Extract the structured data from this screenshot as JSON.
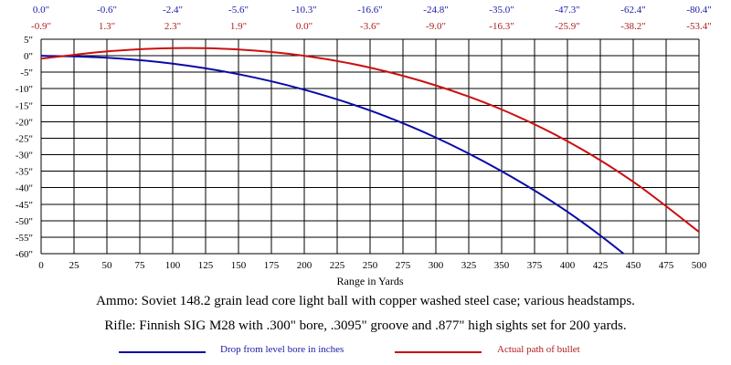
{
  "chart_data": {
    "type": "line",
    "xlabel": "Range in Yards",
    "ylabel": "",
    "xlim": [
      0,
      500
    ],
    "ylim": [
      -60,
      5
    ],
    "x_ticks": [
      0,
      25,
      50,
      75,
      100,
      125,
      150,
      175,
      200,
      225,
      250,
      275,
      300,
      325,
      350,
      375,
      400,
      425,
      450,
      475,
      500
    ],
    "y_tick_labels": [
      "5\"",
      "0\"",
      "-5\"",
      "-10\"",
      "-15\"",
      "-20\"",
      "-25\"",
      "-30\"",
      "-35\"",
      "-40\"",
      "-45\"",
      "-50\"",
      "-55\"",
      "-60\""
    ],
    "y_tick_values": [
      5,
      0,
      -5,
      -10,
      -15,
      -20,
      -25,
      -30,
      -35,
      -40,
      -45,
      -50,
      -55,
      -60
    ],
    "grid": true,
    "series": [
      {
        "name": "Drop from level bore in inches",
        "color": "#0a0aa8",
        "x": [
          0,
          50,
          100,
          150,
          200,
          250,
          300,
          350,
          400,
          450,
          500
        ],
        "values": [
          0.0,
          -0.6,
          -2.4,
          -5.6,
          -10.3,
          -16.6,
          -24.8,
          -35.0,
          -47.3,
          -62.4,
          -80.4
        ]
      },
      {
        "name": "Actual path of bullet",
        "color": "#cc1010",
        "x": [
          0,
          50,
          100,
          150,
          200,
          250,
          300,
          350,
          400,
          450,
          500
        ],
        "values": [
          -0.9,
          1.3,
          2.3,
          1.9,
          0.0,
          -3.6,
          -9.0,
          -16.3,
          -25.9,
          -38.2,
          -53.4
        ]
      }
    ],
    "top_labels_drop": [
      "0.0\"",
      "-0.6\"",
      "-2.4\"",
      "-5.6\"",
      "-10.3\"",
      "-16.6\"",
      "-24.8\"",
      "-35.0\"",
      "-47.3\"",
      "-62.4\"",
      "-80.4\""
    ],
    "top_labels_path": [
      "-0.9\"",
      "1.3\"",
      "2.3\"",
      "1.9\"",
      "0.0\"",
      "-3.6\"",
      "-9.0\"",
      "-16.3\"",
      "-25.9\"",
      "-38.2\"",
      "-53.4\""
    ],
    "annotations": [
      "Ammo:  Soviet 148.2 grain lead core light ball with copper washed steel case; various headstamps.",
      "Rifle:  Finnish SIG M28 with .300\" bore, .3095\" groove and .877\" high sights set for 200 yards."
    ]
  },
  "legend": {
    "drop_label": "Drop from level bore in inches",
    "path_label": "Actual path of bullet"
  }
}
